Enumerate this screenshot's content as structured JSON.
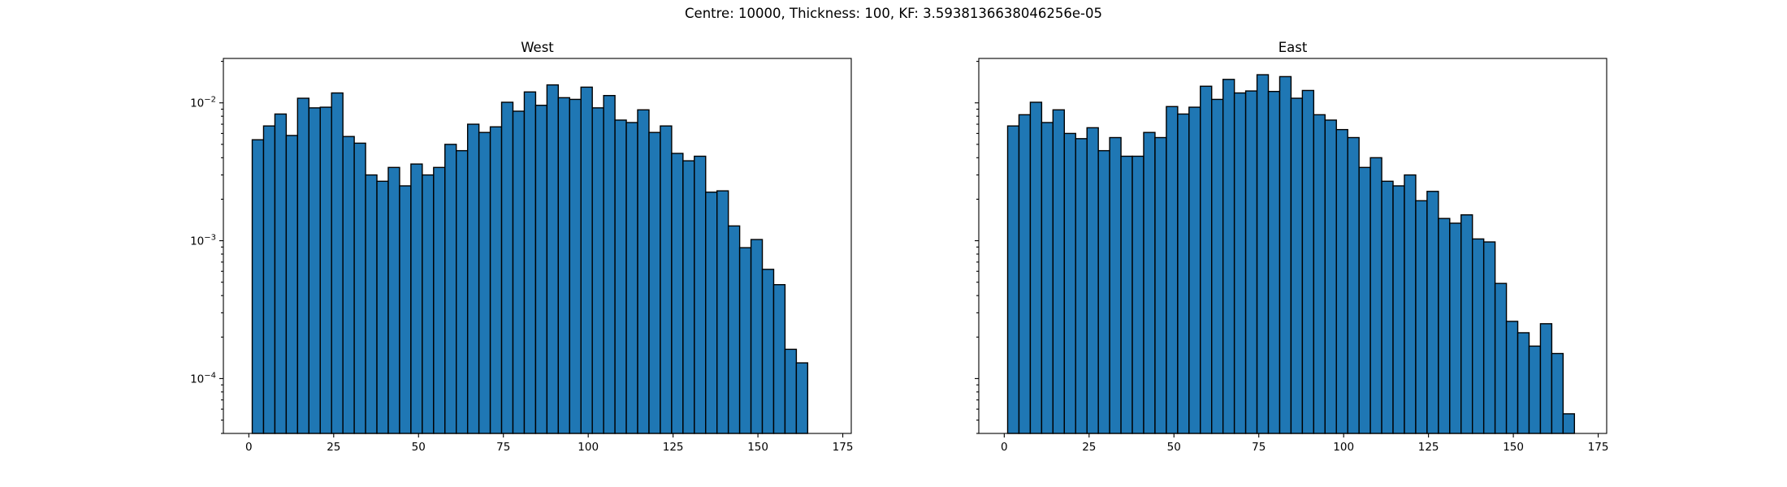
{
  "figure": {
    "suptitle": "Centre: 10000, Thickness: 100, KF: 3.5938136638046256e-05"
  },
  "chart_data": [
    {
      "type": "bar",
      "title": "West",
      "xlabel": "",
      "ylabel": "",
      "yscale": "log",
      "xlim": [
        -7.5,
        177.5
      ],
      "ylim": [
        4e-05,
        0.021
      ],
      "xticks": [
        0,
        25,
        50,
        75,
        100,
        125,
        150,
        175
      ],
      "yticks": [
        {
          "value": 0.0001,
          "base": "10",
          "exp": "−4"
        },
        {
          "value": 0.001,
          "base": "10",
          "exp": "−3"
        },
        {
          "value": 0.01,
          "base": "10",
          "exp": "−2"
        }
      ],
      "show_ytick_labels": true,
      "bin_start": 1,
      "bin_width": 3.34,
      "values": [
        0.0054,
        0.0068,
        0.0083,
        0.0058,
        0.0108,
        0.0092,
        0.0093,
        0.0118,
        0.0057,
        0.0051,
        0.003,
        0.0027,
        0.0034,
        0.0025,
        0.0036,
        0.003,
        0.0034,
        0.005,
        0.0045,
        0.007,
        0.0061,
        0.0067,
        0.0101,
        0.0087,
        0.012,
        0.0096,
        0.0135,
        0.0109,
        0.0106,
        0.013,
        0.0092,
        0.0113,
        0.0075,
        0.0072,
        0.0089,
        0.0061,
        0.0068,
        0.0043,
        0.0038,
        0.0041,
        0.00225,
        0.0023,
        0.00128,
        0.00089,
        0.00102,
        0.00062,
        0.00048,
        0.000163,
        0.00013
      ]
    },
    {
      "type": "bar",
      "title": "East",
      "xlabel": "",
      "ylabel": "",
      "yscale": "log",
      "xlim": [
        -7.5,
        177.5
      ],
      "ylim": [
        4e-05,
        0.021
      ],
      "xticks": [
        0,
        25,
        50,
        75,
        100,
        125,
        150,
        175
      ],
      "yticks": [
        {
          "value": 0.0001,
          "base": "10",
          "exp": "−4"
        },
        {
          "value": 0.001,
          "base": "10",
          "exp": "−3"
        },
        {
          "value": 0.01,
          "base": "10",
          "exp": "−2"
        }
      ],
      "show_ytick_labels": false,
      "bin_start": 1,
      "bin_width": 3.34,
      "values": [
        0.0068,
        0.0082,
        0.0101,
        0.0072,
        0.0089,
        0.006,
        0.0055,
        0.0066,
        0.0045,
        0.0056,
        0.0041,
        0.0041,
        0.0061,
        0.0056,
        0.0094,
        0.0083,
        0.0093,
        0.0132,
        0.0106,
        0.0148,
        0.0118,
        0.0122,
        0.016,
        0.0121,
        0.0155,
        0.0108,
        0.0123,
        0.0082,
        0.0075,
        0.0064,
        0.0056,
        0.0034,
        0.004,
        0.0027,
        0.0025,
        0.003,
        0.00195,
        0.00228,
        0.00145,
        0.00134,
        0.00154,
        0.00103,
        0.00098,
        0.00049,
        0.00026,
        0.000215,
        0.000172,
        0.00025,
        0.000152,
        5.55e-05
      ]
    }
  ]
}
